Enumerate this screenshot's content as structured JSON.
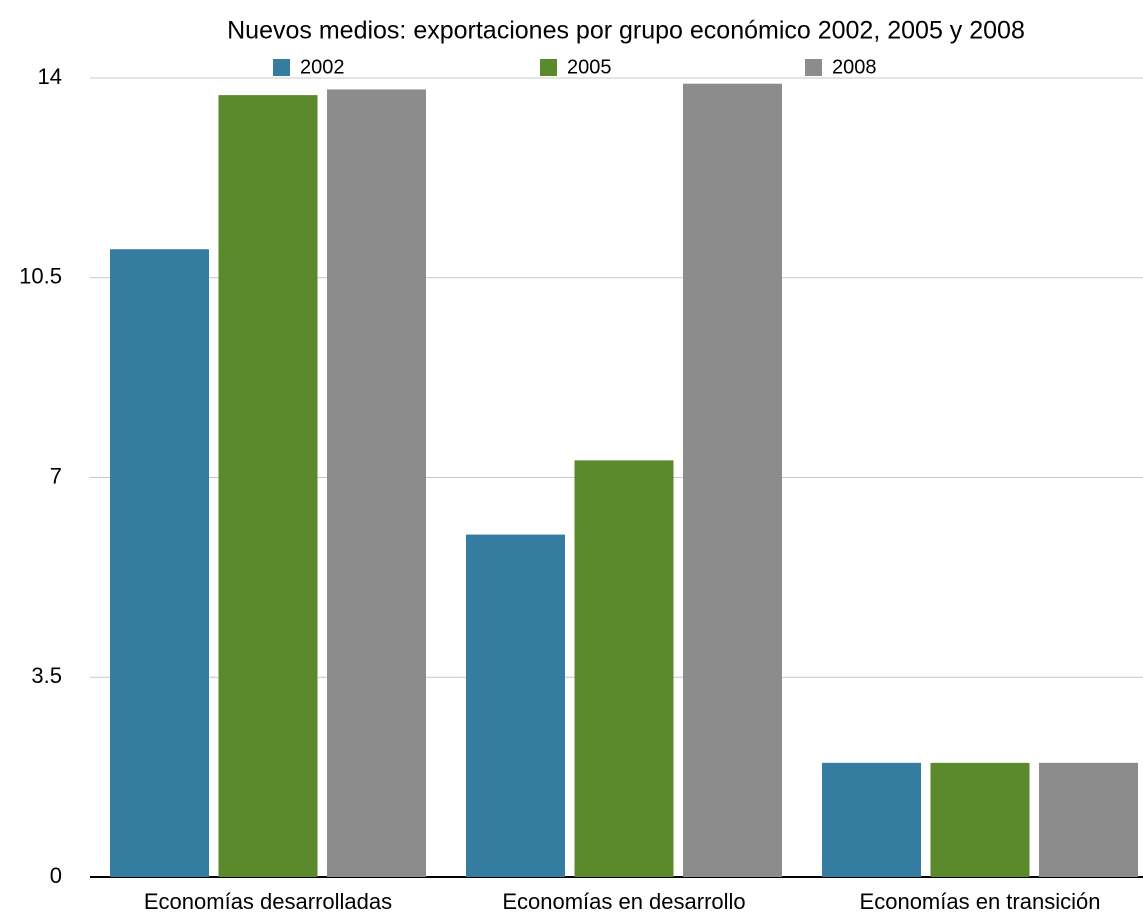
{
  "chart_data": {
    "type": "bar",
    "title": "Nuevos medios: exportaciones por grupo económico 2002, 2005 y 2008",
    "categories": [
      "Economías desarrolladas",
      "Economías en desarrollo",
      "Economías en transición"
    ],
    "series": [
      {
        "name": "2002",
        "color": "#357ca1",
        "values": [
          11.0,
          6.0,
          2.0
        ]
      },
      {
        "name": "2005",
        "color": "#5a8a2b",
        "values": [
          13.7,
          7.3,
          2.0
        ]
      },
      {
        "name": "2008",
        "color": "#8c8c8c",
        "values": [
          13.8,
          13.9,
          2.0
        ]
      }
    ],
    "ylim": [
      0,
      14
    ],
    "yticks": [
      0,
      3.5,
      7,
      10.5,
      14
    ],
    "grid": true,
    "legend": "top"
  }
}
